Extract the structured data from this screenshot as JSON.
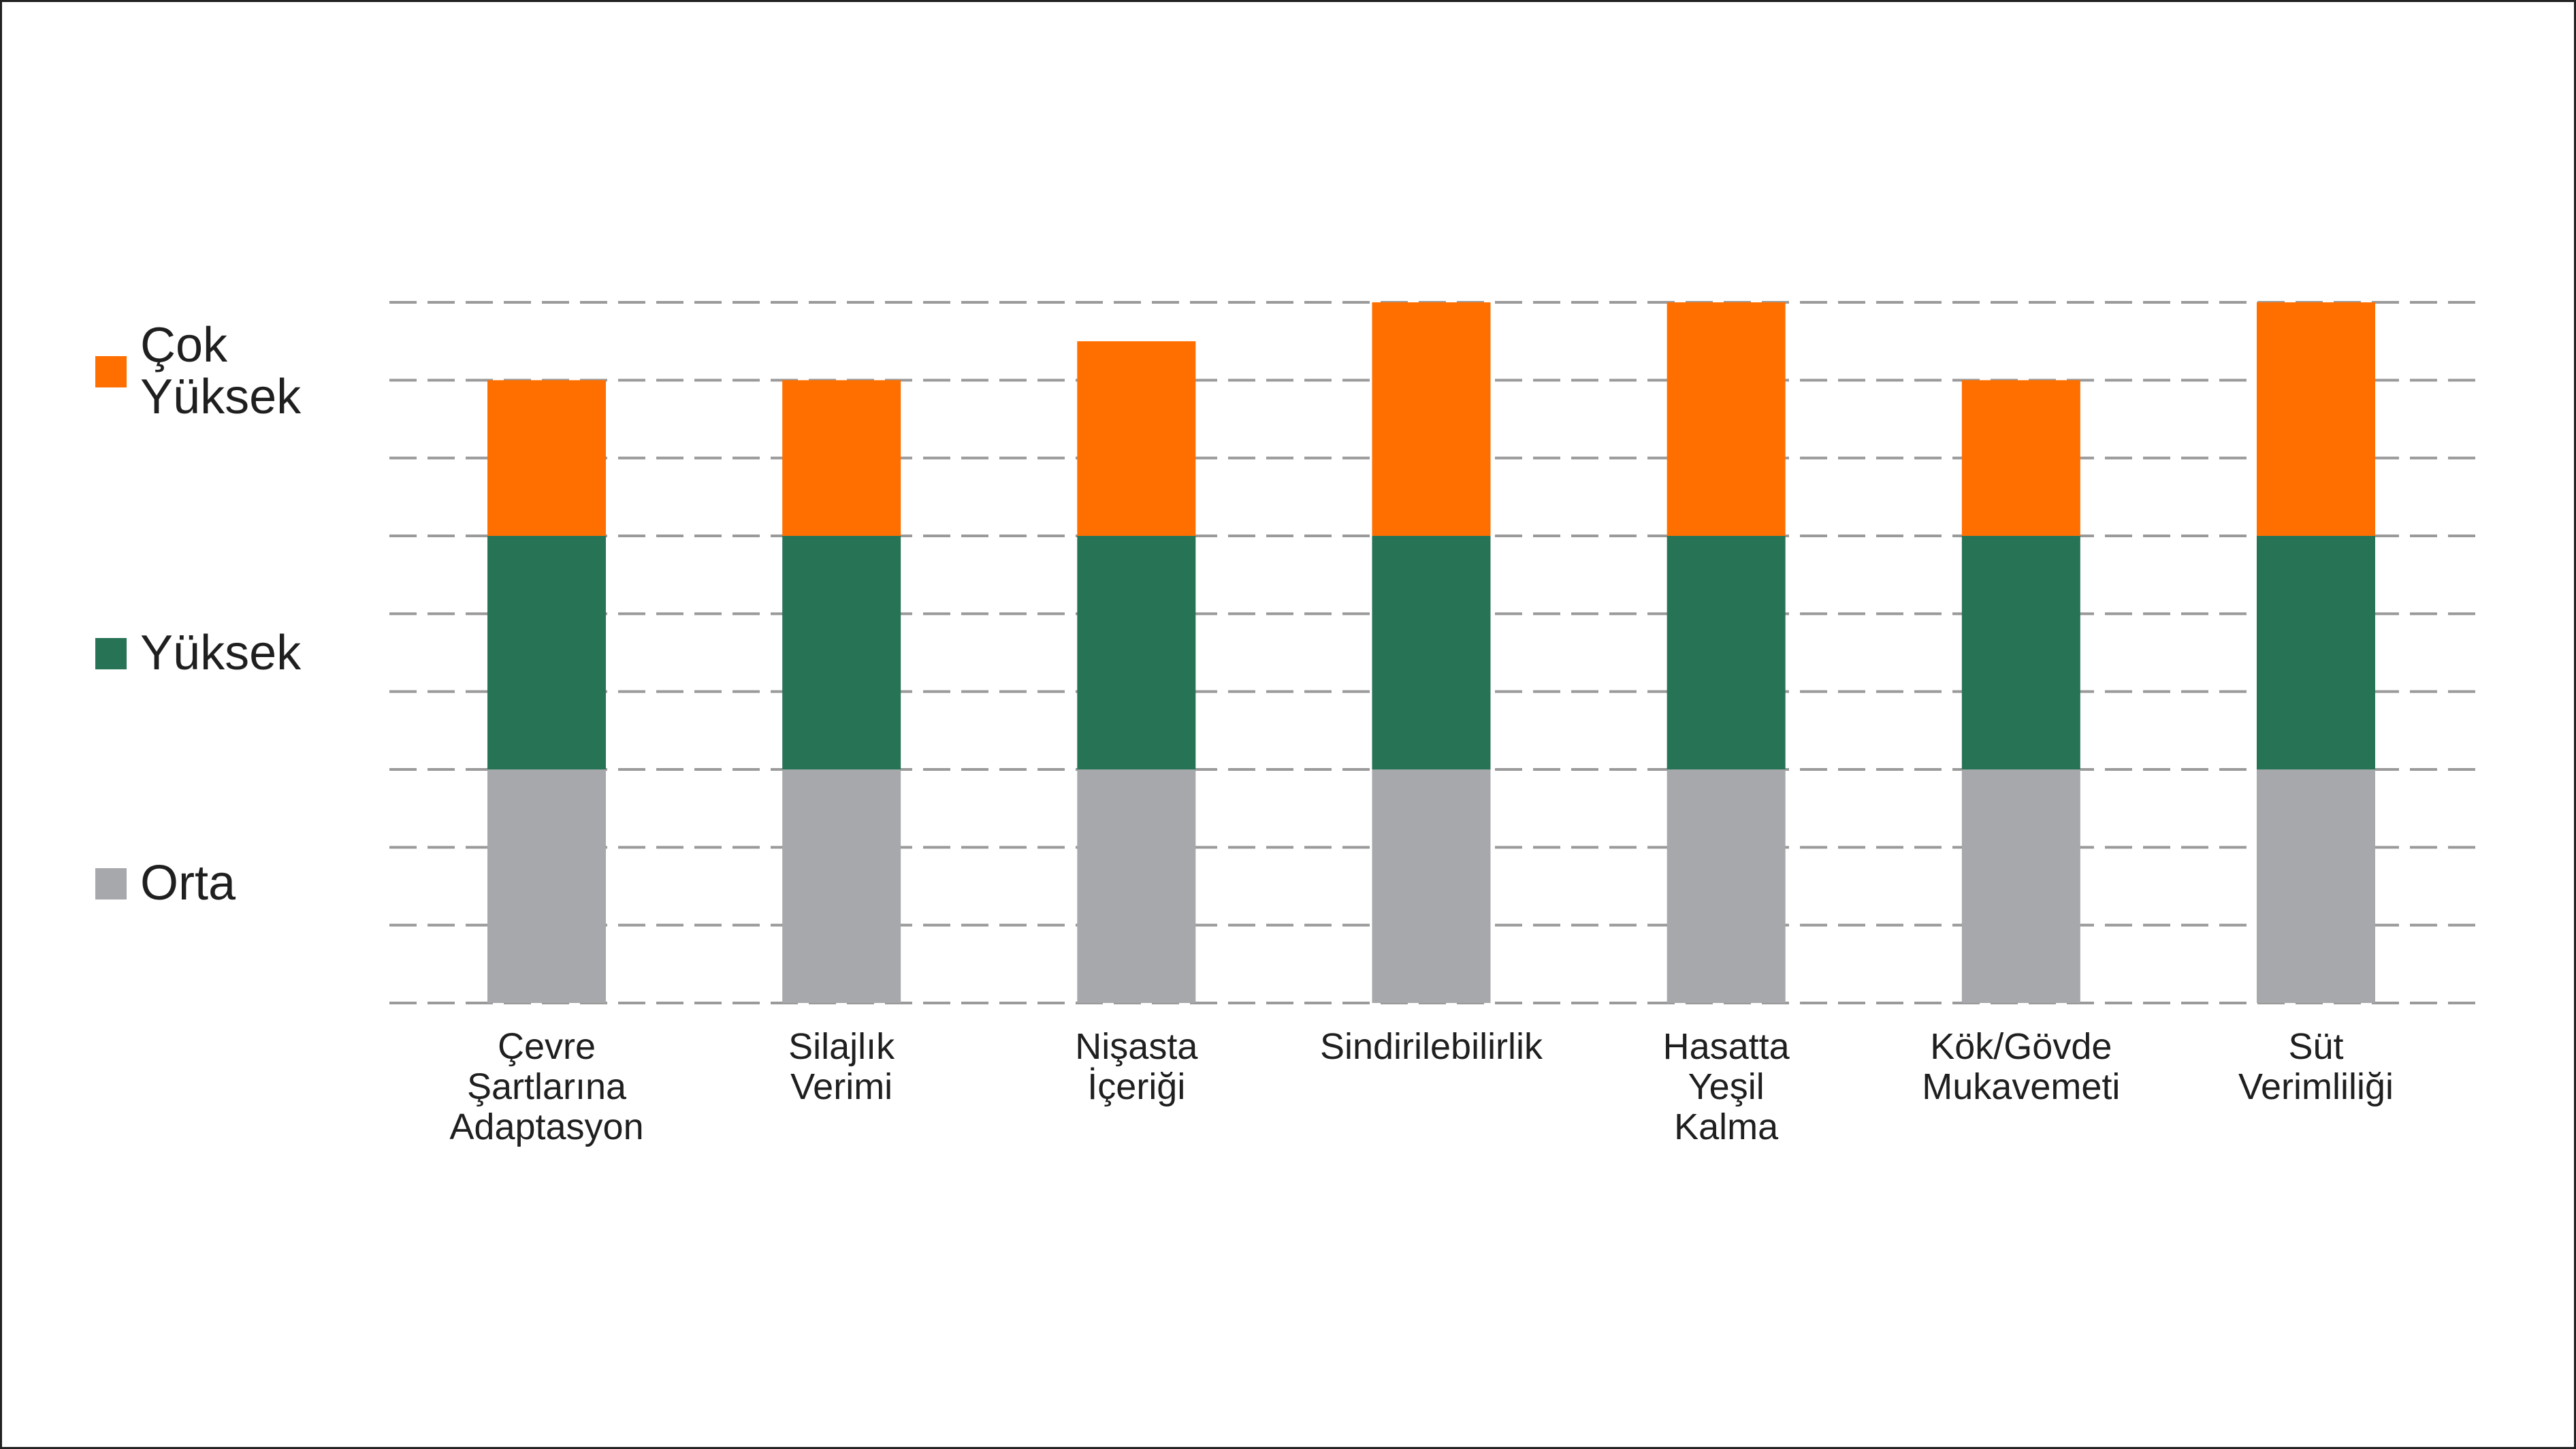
{
  "chart_data": {
    "type": "bar",
    "stacked": true,
    "categories": [
      [
        "Çevre",
        "Şartlarına",
        "Adaptasyon"
      ],
      [
        "Silajlık",
        "Verimi"
      ],
      [
        "Nişasta",
        "İçeriği"
      ],
      [
        "Sindirilebilirlik"
      ],
      [
        "Hasatta",
        "Yeşil",
        "Kalma"
      ],
      [
        "Kök/Gövde",
        "Mukavemeti"
      ],
      [
        "Süt",
        "Verimliliği"
      ]
    ],
    "series": [
      {
        "name": "Orta",
        "color": "#A7A8AB",
        "values": [
          3,
          3,
          3,
          3,
          3,
          3,
          3
        ]
      },
      {
        "name": "Yüksek",
        "color": "#277356",
        "values": [
          3,
          3,
          3,
          3,
          3,
          3,
          3
        ]
      },
      {
        "name": "Çok Yüksek",
        "color": "#FF6F00",
        "values": [
          2,
          2,
          2.5,
          3,
          3,
          2,
          3
        ]
      }
    ],
    "ylim": [
      0,
      9
    ],
    "grid": true,
    "grid_style": "dashed",
    "legend_position": "left",
    "legend": {
      "top": {
        "label": "Çok\nYüksek",
        "color": "#FF6F00"
      },
      "mid": {
        "label": "Yüksek",
        "color": "#277356"
      },
      "low": {
        "label": "Orta",
        "color": "#A7A8AB"
      }
    }
  }
}
